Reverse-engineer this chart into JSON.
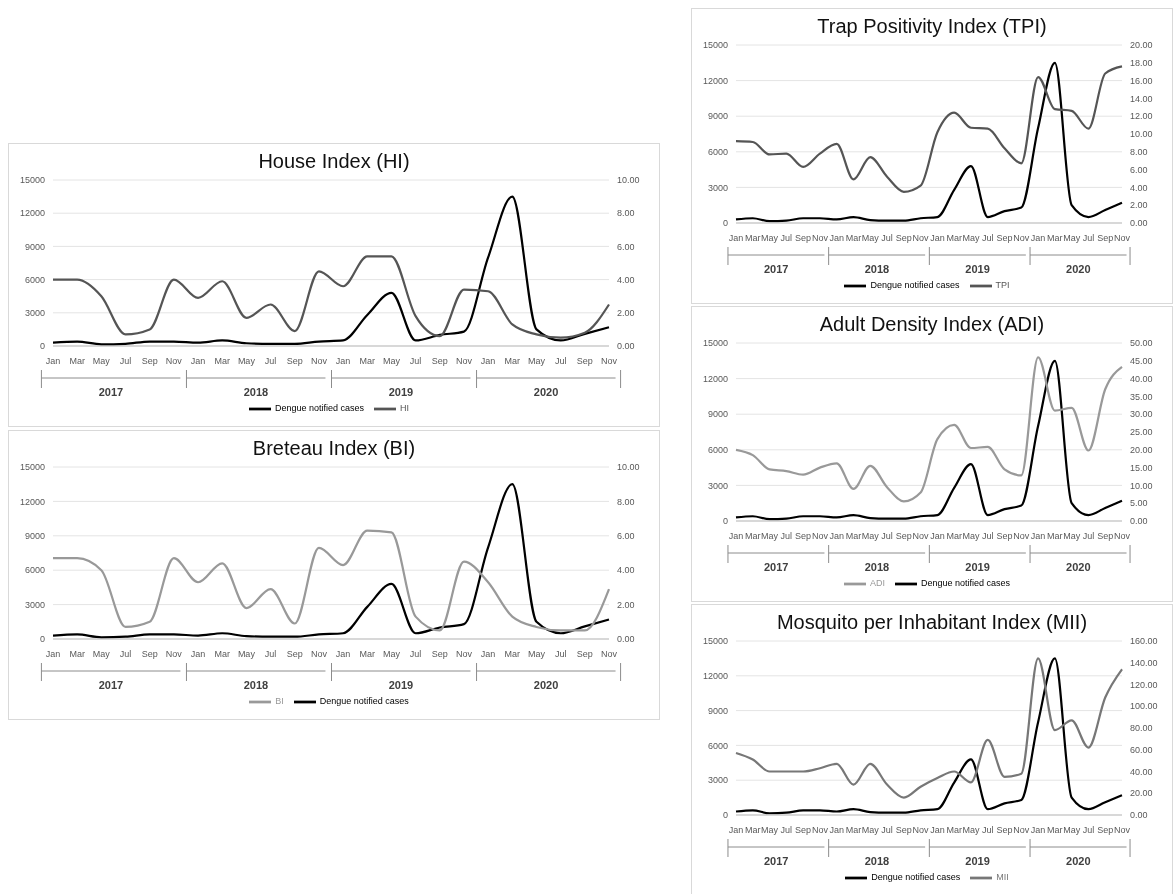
{
  "chart_data": [
    {
      "type": "line",
      "title": "House Index (HI)",
      "categories": [
        "Jan",
        "Mar",
        "May",
        "Jul",
        "Sep",
        "Nov",
        "Jan",
        "Mar",
        "May",
        "Jul",
        "Sep",
        "Nov",
        "Jan",
        "Mar",
        "May",
        "Jul",
        "Sep",
        "Nov",
        "Jan",
        "Mar",
        "May",
        "Jul",
        "Sep",
        "Nov"
      ],
      "annotations": [
        "2017",
        "2018",
        "2019",
        "2020"
      ],
      "series": [
        {
          "name": "Dengue notified cases",
          "color": "#000000",
          "values": [
            300,
            400,
            150,
            200,
            400,
            400,
            300,
            500,
            250,
            200,
            200,
            400,
            500,
            2800,
            4800,
            500,
            1000,
            1300,
            8000,
            13500,
            1500,
            500,
            1100,
            1700
          ]
        },
        {
          "name": "HI",
          "color": "#555555",
          "axis": "y2",
          "values": [
            4.0,
            4.0,
            3.0,
            0.7,
            1.0,
            4.0,
            2.9,
            3.9,
            1.7,
            2.5,
            0.9,
            4.5,
            3.6,
            5.4,
            5.4,
            1.8,
            0.6,
            3.4,
            3.3,
            1.3,
            0.7,
            0.5,
            0.8,
            2.5
          ]
        }
      ],
      "ylim": [
        0,
        15000
      ],
      "yticks": [
        0,
        3000,
        6000,
        9000,
        12000,
        15000
      ],
      "y2lim": [
        0,
        10
      ],
      "y2ticks": [
        {
          "value": 0,
          "label": "0.00"
        },
        {
          "value": 2,
          "label": "2.00"
        },
        {
          "value": 4,
          "label": "4.00"
        },
        {
          "value": 6,
          "label": "6.00"
        },
        {
          "value": 8,
          "label": "8.00"
        },
        {
          "value": 10,
          "label": "10.00"
        }
      ],
      "grid": "y",
      "legend": "bottom",
      "marker": "none",
      "line_style": "solid"
    },
    {
      "type": "line",
      "title": "Breteau Index (BI)",
      "categories": [
        "Jan",
        "Mar",
        "May",
        "Jul",
        "Sep",
        "Nov",
        "Jan",
        "Mar",
        "May",
        "Jul",
        "Sep",
        "Nov",
        "Jan",
        "Mar",
        "May",
        "Jul",
        "Sep",
        "Nov",
        "Jan",
        "Mar",
        "May",
        "Jul",
        "Sep",
        "Nov"
      ],
      "annotations": [
        "2017",
        "2018",
        "2019",
        "2020"
      ],
      "series": [
        {
          "name": "Dengue notified cases",
          "color": "#000000",
          "values": [
            300,
            400,
            150,
            200,
            400,
            400,
            300,
            500,
            250,
            200,
            200,
            400,
            500,
            2800,
            4800,
            500,
            1000,
            1300,
            8000,
            13500,
            1500,
            500,
            1100,
            1700
          ]
        },
        {
          "name": "BI",
          "color": "#999999",
          "axis": "y2",
          "values": [
            4.7,
            4.7,
            4.0,
            0.7,
            1.0,
            4.7,
            3.3,
            4.4,
            1.8,
            2.9,
            0.9,
            5.3,
            4.3,
            6.3,
            6.2,
            1.3,
            0.5,
            4.5,
            3.3,
            1.3,
            0.7,
            0.5,
            0.5,
            2.9
          ]
        }
      ],
      "ylim": [
        0,
        15000
      ],
      "yticks": [
        0,
        3000,
        6000,
        9000,
        12000,
        15000
      ],
      "y2lim": [
        0,
        10
      ],
      "y2ticks": [
        {
          "value": 0,
          "label": "0.00"
        },
        {
          "value": 2,
          "label": "2.00"
        },
        {
          "value": 4,
          "label": "4.00"
        },
        {
          "value": 6,
          "label": "6.00"
        },
        {
          "value": 8,
          "label": "8.00"
        },
        {
          "value": 10,
          "label": "10.00"
        }
      ],
      "grid": "y",
      "legend": "bottom",
      "marker": "none",
      "line_style": "solid"
    },
    {
      "type": "line",
      "title": "Trap Positivity Index (TPI)",
      "categories": [
        "Jan",
        "Mar",
        "May",
        "Jul",
        "Sep",
        "Nov",
        "Jan",
        "Mar",
        "May",
        "Jul",
        "Sep",
        "Nov",
        "Jan",
        "Mar",
        "May",
        "Jul",
        "Sep",
        "Nov",
        "Jan",
        "Mar",
        "May",
        "Jul",
        "Sep",
        "Nov"
      ],
      "annotations": [
        "2017",
        "2018",
        "2019",
        "2020"
      ],
      "series": [
        {
          "name": "Dengue notified cases",
          "color": "#000000",
          "values": [
            300,
            400,
            150,
            200,
            400,
            400,
            300,
            500,
            250,
            200,
            200,
            400,
            500,
            2800,
            4800,
            500,
            1000,
            1300,
            8000,
            13500,
            1500,
            500,
            1100,
            1700
          ]
        },
        {
          "name": "TPI",
          "color": "#555555",
          "axis": "y2",
          "values": [
            9.2,
            9.1,
            7.7,
            7.8,
            6.3,
            7.8,
            8.9,
            4.9,
            7.4,
            5.2,
            3.5,
            4.2,
            10.2,
            12.4,
            10.7,
            10.6,
            8.4,
            6.7,
            16.4,
            12.8,
            12.6,
            10.6,
            16.8,
            17.6
          ]
        }
      ],
      "ylim": [
        0,
        15000
      ],
      "yticks": [
        0,
        3000,
        6000,
        9000,
        12000,
        15000
      ],
      "y2lim": [
        0,
        20
      ],
      "y2ticks": [
        {
          "value": 0,
          "label": "0.00"
        },
        {
          "value": 2,
          "label": "2.00"
        },
        {
          "value": 4,
          "label": "4.00"
        },
        {
          "value": 6,
          "label": "6.00"
        },
        {
          "value": 8,
          "label": "8.00"
        },
        {
          "value": 10,
          "label": "10.00"
        },
        {
          "value": 12,
          "label": "12.00"
        },
        {
          "value": 14,
          "label": "14.00"
        },
        {
          "value": 16,
          "label": "16.00"
        },
        {
          "value": 18,
          "label": "18.00"
        },
        {
          "value": 20,
          "label": "20.00"
        }
      ],
      "grid": "y",
      "legend": "bottom",
      "marker": "none",
      "line_style": "solid"
    },
    {
      "type": "line",
      "title": "Adult Density Index (ADI)",
      "categories": [
        "Jan",
        "Mar",
        "May",
        "Jul",
        "Sep",
        "Nov",
        "Jan",
        "Mar",
        "May",
        "Jul",
        "Sep",
        "Nov",
        "Jan",
        "Mar",
        "May",
        "Jul",
        "Sep",
        "Nov",
        "Jan",
        "Mar",
        "May",
        "Jul",
        "Sep",
        "Nov"
      ],
      "annotations": [
        "2017",
        "2018",
        "2019",
        "2020"
      ],
      "series": [
        {
          "name": "Dengue notified cases",
          "color": "#000000",
          "values": [
            300,
            400,
            150,
            200,
            400,
            400,
            300,
            500,
            250,
            200,
            200,
            400,
            500,
            2800,
            4800,
            500,
            1000,
            1300,
            8000,
            13500,
            1500,
            500,
            1100,
            1700
          ]
        },
        {
          "name": "ADI",
          "color": "#999999",
          "axis": "y2",
          "values": [
            20.0,
            18.5,
            14.5,
            14.0,
            13.0,
            15.0,
            16.2,
            9.0,
            15.5,
            9.5,
            5.5,
            8.0,
            23.0,
            27.0,
            20.5,
            20.8,
            14.5,
            12.8,
            46.0,
            31.0,
            31.8,
            19.8,
            37.0,
            43.3
          ]
        }
      ],
      "ylim": [
        0,
        15000
      ],
      "yticks": [
        0,
        3000,
        6000,
        9000,
        12000,
        15000
      ],
      "y2lim": [
        0,
        50
      ],
      "y2ticks": [
        {
          "value": 0,
          "label": "0.00"
        },
        {
          "value": 5,
          "label": "5.00"
        },
        {
          "value": 10,
          "label": "10.00"
        },
        {
          "value": 15,
          "label": "15.00"
        },
        {
          "value": 20,
          "label": "20.00"
        },
        {
          "value": 25,
          "label": "25.00"
        },
        {
          "value": 30,
          "label": "30.00"
        },
        {
          "value": 35,
          "label": "35.00"
        },
        {
          "value": 40,
          "label": "40.00"
        },
        {
          "value": 45,
          "label": "45.00"
        },
        {
          "value": 50,
          "label": "50.00"
        }
      ],
      "grid": "y",
      "legend": "bottom",
      "marker": "none",
      "line_style": "solid"
    },
    {
      "type": "line",
      "title": "Mosquito per Inhabitant Index (MII)",
      "categories": [
        "Jan",
        "Mar",
        "May",
        "Jul",
        "Sep",
        "Nov",
        "Jan",
        "Mar",
        "May",
        "Jul",
        "Sep",
        "Nov",
        "Jan",
        "Mar",
        "May",
        "Jul",
        "Sep",
        "Nov",
        "Jan",
        "Mar",
        "May",
        "Jul",
        "Sep",
        "Nov"
      ],
      "annotations": [
        "2017",
        "2018",
        "2019",
        "2020"
      ],
      "series": [
        {
          "name": "Dengue notified cases",
          "color": "#000000",
          "values": [
            300,
            400,
            150,
            200,
            400,
            400,
            300,
            500,
            250,
            200,
            200,
            400,
            500,
            2800,
            4800,
            500,
            1000,
            1300,
            8000,
            13500,
            1500,
            500,
            1100,
            1700
          ]
        },
        {
          "name": "MII",
          "color": "#777777",
          "axis": "y2",
          "values": [
            57,
            51,
            40,
            40,
            40,
            43,
            47,
            28,
            47,
            28,
            16,
            26,
            34,
            40,
            30,
            69,
            35,
            38,
            144,
            78,
            87,
            62,
            108,
            134
          ]
        }
      ],
      "ylim": [
        0,
        15000
      ],
      "yticks": [
        0,
        3000,
        6000,
        9000,
        12000,
        15000
      ],
      "y2lim": [
        0,
        160
      ],
      "y2ticks": [
        {
          "value": 0,
          "label": "0.00"
        },
        {
          "value": 20,
          "label": "20.00"
        },
        {
          "value": 40,
          "label": "40.00"
        },
        {
          "value": 60,
          "label": "60.00"
        },
        {
          "value": 80,
          "label": "80.00"
        },
        {
          "value": 100,
          "label": "100.00"
        },
        {
          "value": 120,
          "label": "120.00"
        },
        {
          "value": 140,
          "label": "140.00"
        },
        {
          "value": 160,
          "label": "160.00"
        }
      ],
      "grid": "y",
      "legend": "bottom",
      "marker": "none",
      "line_style": "solid"
    }
  ]
}
